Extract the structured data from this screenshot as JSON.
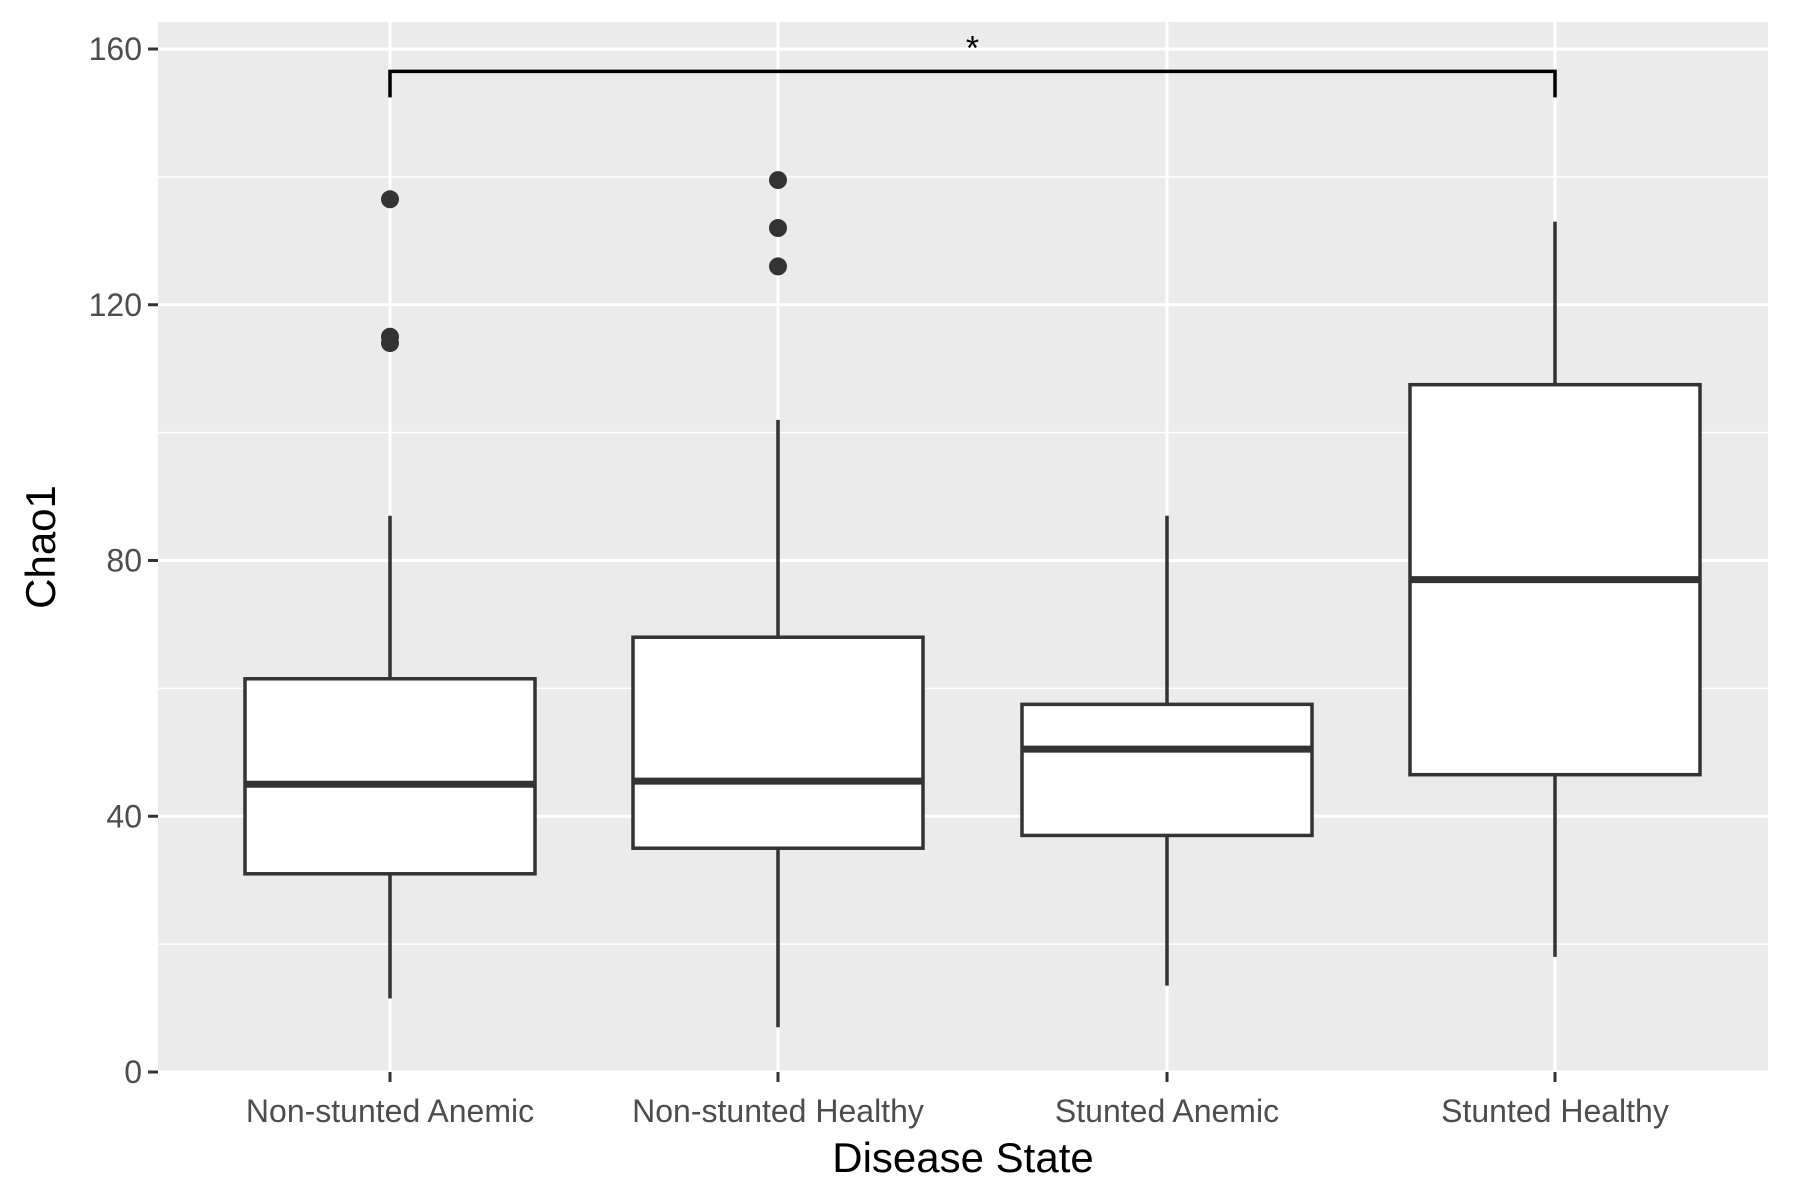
{
  "chart_data": {
    "type": "box",
    "title": "",
    "xlabel": "Disease State",
    "ylabel": "Chao1",
    "ylim": [
      0,
      160
    ],
    "yticks": [
      0,
      40,
      80,
      120,
      160
    ],
    "ytick_labels": [
      "0",
      "40",
      "80",
      "120",
      "160"
    ],
    "categories": [
      "Non-stunted Anemic",
      "Non-stunted Healthy",
      "Stunted Anemic",
      "Stunted Healthy"
    ],
    "boxes": [
      {
        "category": "Non-stunted Anemic",
        "whisker_low": 11.5,
        "q1": 31,
        "median": 45,
        "q3": 61.5,
        "whisker_high": 87,
        "outliers": [
          136.5,
          115,
          114
        ]
      },
      {
        "category": "Non-stunted Healthy",
        "whisker_low": 7,
        "q1": 35,
        "median": 45.5,
        "q3": 68,
        "whisker_high": 102,
        "outliers": [
          139.5,
          132,
          126
        ]
      },
      {
        "category": "Stunted Anemic",
        "whisker_low": 13.5,
        "q1": 37,
        "median": 50.5,
        "q3": 57.5,
        "whisker_high": 87,
        "outliers": []
      },
      {
        "category": "Stunted Healthy",
        "whisker_low": 18,
        "q1": 46.5,
        "median": 77,
        "q3": 107.5,
        "whisker_high": 133,
        "outliers": []
      }
    ],
    "significance": [
      {
        "from": "Non-stunted Anemic",
        "to": "Stunted Healthy",
        "y": 156.5,
        "label": "*"
      }
    ],
    "grid": true,
    "colors": {
      "panel": "#ebebeb",
      "grid": "#ffffff",
      "box_fill": "#ffffff",
      "box_stroke": "#333333",
      "bracket": "#000000"
    }
  }
}
